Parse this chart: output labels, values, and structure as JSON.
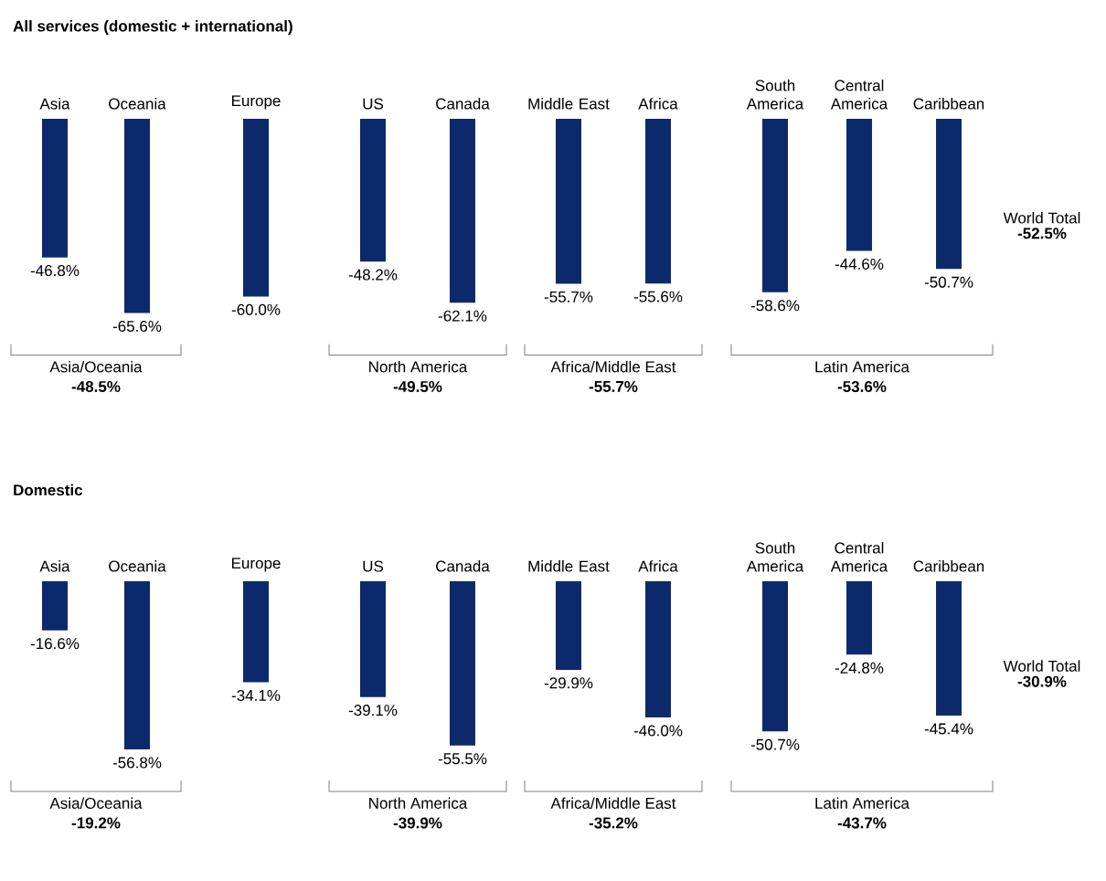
{
  "chart_data": [
    {
      "type": "bar",
      "title": "All services (domestic + international)",
      "categories": [
        "Asia",
        "Oceania",
        "Europe",
        "US",
        "Canada",
        "Middle East",
        "Africa",
        "South America",
        "Central America",
        "Caribbean"
      ],
      "values": [
        -46.8,
        -65.6,
        -60.0,
        -48.2,
        -62.1,
        -55.7,
        -55.6,
        -58.6,
        -44.6,
        -50.7
      ],
      "value_labels": [
        "-46.8%",
        "-65.6%",
        "-60.0%",
        "-48.2%",
        "-62.1%",
        "-55.7%",
        "-55.6%",
        "-58.6%",
        "-44.6%",
        "-50.7%"
      ],
      "color": "#0c2a6b",
      "annotations": [
        "World Total",
        "-52.5%",
        "Asia/Oceania",
        "-48.5%",
        "North America",
        "-49.5%",
        "Africa/Middle East",
        "-55.7%",
        "Latin America",
        "-53.6%"
      ]
    },
    {
      "type": "bar",
      "title": "Domestic",
      "categories": [
        "Asia",
        "Oceania",
        "Europe",
        "US",
        "Canada",
        "Middle East",
        "Africa",
        "South America",
        "Central America",
        "Caribbean"
      ],
      "values": [
        -16.6,
        -56.8,
        -34.1,
        -39.1,
        -55.5,
        -29.9,
        -46.0,
        -50.7,
        -24.8,
        -45.4
      ],
      "value_labels": [
        "-16.6%",
        "-56.8%",
        "-34.1%",
        "-39.1%",
        "-55.5%",
        "-29.9%",
        "-46.0%",
        "-50.7%",
        "-24.8%",
        "-45.4%"
      ],
      "color": "#0c2a6b",
      "annotations": [
        "World Total",
        "-30.9%",
        "Asia/Oceania",
        "-19.2%",
        "North America",
        "-39.9%",
        "Africa/Middle East",
        "-35.2%",
        "Latin America",
        "-43.7%"
      ]
    }
  ]
}
